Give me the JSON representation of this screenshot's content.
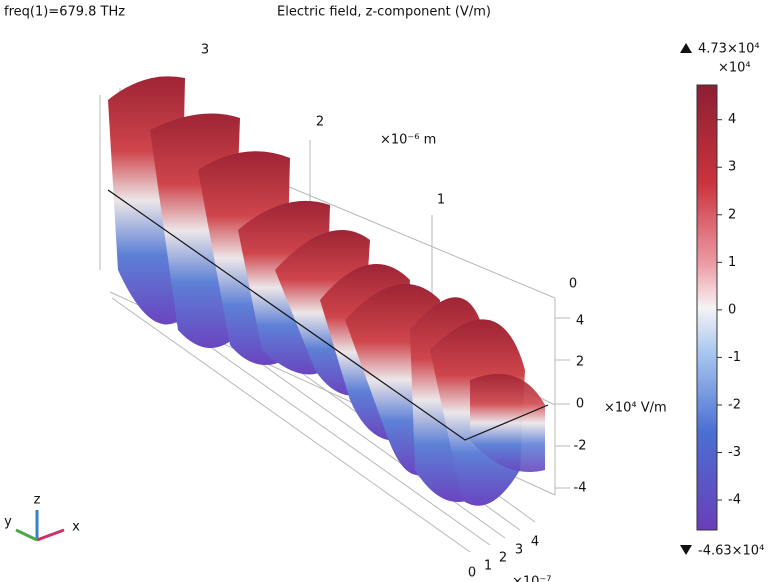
{
  "header": {
    "info": "freq(1)=679.8 THz",
    "title": "Electric field, z-component (V/m)"
  },
  "axes": {
    "y_ticks": [
      "3",
      "2",
      "1",
      "0"
    ],
    "y_unit": "×10⁻⁶ m",
    "z_ticks": [
      "4",
      "2",
      "0",
      "-2",
      "-4"
    ],
    "z_unit": "×10⁴ V/m",
    "x_ticks": [
      "0",
      "1",
      "2",
      "3",
      "4"
    ],
    "x_unit": "×10⁻⁷"
  },
  "triad": {
    "z": "z",
    "y": "y",
    "x": "x"
  },
  "colorbar": {
    "range": [
      -4.63,
      4.73
    ],
    "ticks": [
      -4,
      -3,
      -2,
      -1,
      0,
      1,
      2,
      3,
      4
    ],
    "unit": "×10⁴",
    "max_label": "4.73×10⁴",
    "min_label": "-4.63×10⁴"
  }
}
